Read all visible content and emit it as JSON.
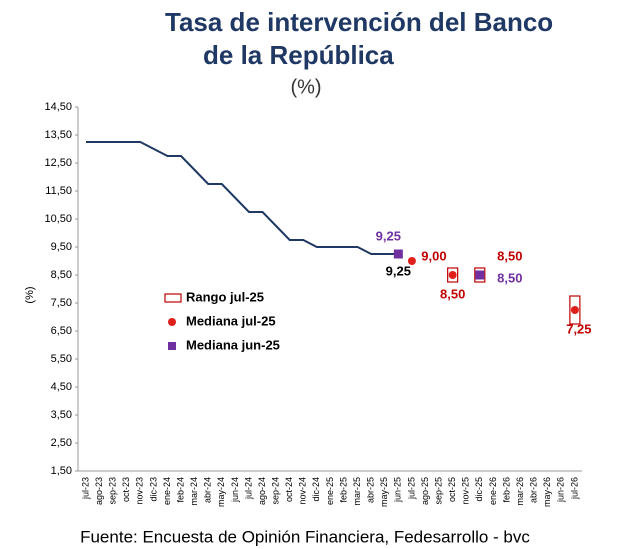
{
  "chart_data": {
    "type": "line",
    "title": [
      "Tasa de intervención del Banco",
      "de la República"
    ],
    "subtitle": "(%)",
    "y_label": "(%)",
    "source": "Fuente: Encuesta de Opinión Financiera, Fedesarrollo - bvc",
    "categories": [
      "jul-23",
      "ago-23",
      "sep-23",
      "oct-23",
      "nov-23",
      "dic-23",
      "ene-24",
      "feb-24",
      "mar-24",
      "abr-24",
      "may-24",
      "jun-24",
      "jul-24",
      "ago-24",
      "sep-24",
      "oct-24",
      "nov-24",
      "dic-24",
      "ene-25",
      "feb-25",
      "mar-25",
      "abr-25",
      "may-25",
      "jun-25",
      "jul-25",
      "ago-25",
      "sep-25",
      "oct-25",
      "nov-25",
      "dic-25",
      "ene-26",
      "feb-26",
      "mar-26",
      "abr-26",
      "may-26",
      "jun-26",
      "jul-26"
    ],
    "ylim": [
      1.5,
      14.5
    ],
    "yticks": [
      {
        "value": 1.5,
        "label": "1,50"
      },
      {
        "value": 2.5,
        "label": "2,50"
      },
      {
        "value": 3.5,
        "label": "3,50"
      },
      {
        "value": 4.5,
        "label": "4,50"
      },
      {
        "value": 5.5,
        "label": "5,50"
      },
      {
        "value": 6.5,
        "label": "6,50"
      },
      {
        "value": 7.5,
        "label": "7,50"
      },
      {
        "value": 8.5,
        "label": "8,50"
      },
      {
        "value": 9.5,
        "label": "9,50"
      },
      {
        "value": 10.5,
        "label": "10,50"
      },
      {
        "value": 11.5,
        "label": "11,50"
      },
      {
        "value": 12.5,
        "label": "12,50"
      },
      {
        "value": 13.5,
        "label": "13,50"
      },
      {
        "value": 14.5,
        "label": "14,50"
      }
    ],
    "grid": false,
    "line": {
      "color": "#1f3864",
      "values": [
        13.25,
        13.25,
        13.25,
        13.25,
        13.25,
        13.0,
        12.75,
        12.75,
        12.25,
        11.75,
        11.75,
        11.25,
        10.75,
        10.75,
        10.25,
        9.75,
        9.75,
        9.5,
        9.5,
        9.5,
        9.5,
        9.25,
        9.25,
        9.25,
        null,
        null,
        null,
        null,
        null,
        null,
        null,
        null,
        null,
        null,
        null,
        null,
        null
      ],
      "value_labels": [
        null,
        null,
        null,
        null,
        null,
        null,
        null,
        null,
        null,
        null,
        null,
        null,
        null,
        null,
        null,
        null,
        null,
        null,
        null,
        null,
        null,
        null,
        null,
        "9,25",
        null,
        null,
        null,
        null,
        null,
        null,
        null,
        null,
        null,
        null,
        null,
        null,
        null
      ]
    },
    "series": [
      {
        "name": "Rango jul-25",
        "marker": "range",
        "color": "#c00000",
        "low": [
          null,
          null,
          null,
          null,
          null,
          null,
          null,
          null,
          null,
          null,
          null,
          null,
          null,
          null,
          null,
          null,
          null,
          null,
          null,
          null,
          null,
          null,
          null,
          null,
          null,
          null,
          null,
          8.25,
          null,
          8.25,
          null,
          null,
          null,
          null,
          null,
          null,
          6.75
        ],
        "high": [
          null,
          null,
          null,
          null,
          null,
          null,
          null,
          null,
          null,
          null,
          null,
          null,
          null,
          null,
          null,
          null,
          null,
          null,
          null,
          null,
          null,
          null,
          null,
          null,
          null,
          null,
          null,
          8.75,
          null,
          8.75,
          null,
          null,
          null,
          null,
          null,
          null,
          7.75
        ]
      },
      {
        "name": "Mediana jul-25",
        "marker": "circle",
        "color": "#e0201b",
        "label_color": "#c00000",
        "values": [
          null,
          null,
          null,
          null,
          null,
          null,
          null,
          null,
          null,
          null,
          null,
          null,
          null,
          null,
          null,
          null,
          null,
          null,
          null,
          null,
          null,
          null,
          null,
          null,
          9.0,
          null,
          null,
          8.5,
          null,
          8.5,
          null,
          null,
          null,
          null,
          null,
          null,
          7.25
        ],
        "value_labels": [
          null,
          null,
          null,
          null,
          null,
          null,
          null,
          null,
          null,
          null,
          null,
          null,
          null,
          null,
          null,
          null,
          null,
          null,
          null,
          null,
          null,
          null,
          null,
          null,
          "9,00",
          null,
          null,
          "8,50",
          null,
          "8,50",
          null,
          null,
          null,
          null,
          null,
          null,
          "7,25"
        ]
      },
      {
        "name": "Mediana jun-25",
        "marker": "square",
        "color": "#7030a0",
        "label_color": "#7030a0",
        "values": [
          null,
          null,
          null,
          null,
          null,
          null,
          null,
          null,
          null,
          null,
          null,
          null,
          null,
          null,
          null,
          null,
          null,
          null,
          null,
          null,
          null,
          null,
          null,
          9.25,
          null,
          null,
          null,
          null,
          null,
          8.5,
          null,
          null,
          null,
          null,
          null,
          null,
          null
        ],
        "value_labels": [
          null,
          null,
          null,
          null,
          null,
          null,
          null,
          null,
          null,
          null,
          null,
          null,
          null,
          null,
          null,
          null,
          null,
          null,
          null,
          null,
          null,
          null,
          null,
          "9,25",
          null,
          null,
          null,
          null,
          null,
          "8,50",
          null,
          null,
          null,
          null,
          null,
          null,
          null
        ]
      }
    ]
  }
}
